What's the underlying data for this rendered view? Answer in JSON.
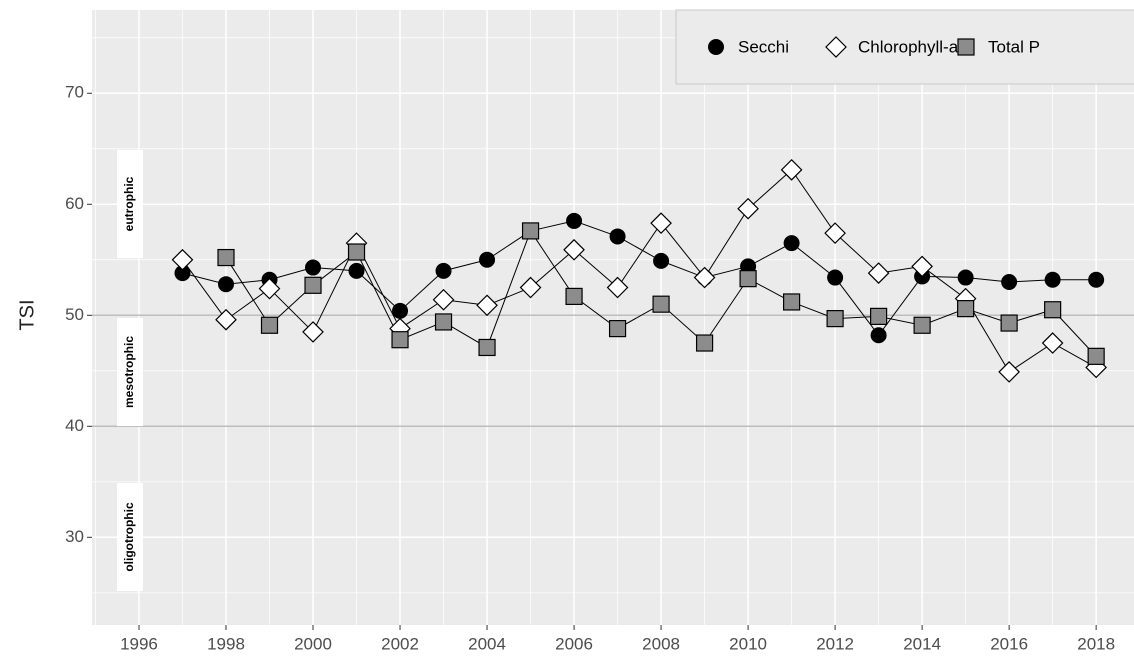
{
  "chart_data": {
    "type": "line",
    "y_label": "TSI",
    "x": [
      1997,
      1998,
      1999,
      2000,
      2001,
      2002,
      2003,
      2004,
      2005,
      2006,
      2007,
      2008,
      2009,
      2010,
      2011,
      2012,
      2013,
      2014,
      2015,
      2016,
      2017,
      2018
    ],
    "series": [
      {
        "name": "Secchi",
        "color": "#000000",
        "marker": "circle",
        "values": [
          53.8,
          52.8,
          53.2,
          54.3,
          54.0,
          50.4,
          54.0,
          55.0,
          57.6,
          58.5,
          57.1,
          54.9,
          53.4,
          54.4,
          56.5,
          53.4,
          48.2,
          53.5,
          53.4,
          53.0,
          53.2,
          53.2
        ]
      },
      {
        "name": "Chlorophyll-a",
        "color": "#ffffff",
        "marker": "diamond",
        "values": [
          55.0,
          49.6,
          52.4,
          48.5,
          56.5,
          48.8,
          51.4,
          50.9,
          52.5,
          55.9,
          52.5,
          58.3,
          53.4,
          59.6,
          63.1,
          57.4,
          53.8,
          54.4,
          51.5,
          44.9,
          47.5,
          45.3
        ]
      },
      {
        "name": "Total P",
        "color": "#8c8c8c",
        "marker": "square",
        "values": [
          null,
          55.2,
          49.1,
          52.7,
          55.7,
          47.8,
          49.4,
          47.1,
          57.6,
          51.7,
          48.8,
          51.0,
          47.5,
          53.3,
          51.2,
          49.7,
          49.9,
          49.1,
          50.6,
          49.3,
          50.5,
          46.3
        ]
      }
    ],
    "xlim": [
      1994.92,
      2018.87
    ],
    "xticks": [
      1996,
      1998,
      2000,
      2002,
      2004,
      2006,
      2008,
      2010,
      2012,
      2014,
      2016,
      2018
    ],
    "ylim": [
      22.1,
      77.5
    ],
    "yticks": [
      30,
      40,
      50,
      60,
      70
    ],
    "hlines": [
      40,
      50
    ],
    "annotations": [
      "eutrophic",
      "mesotrophic",
      "oligotrophic"
    ],
    "grid": true,
    "legend": "top-right"
  }
}
